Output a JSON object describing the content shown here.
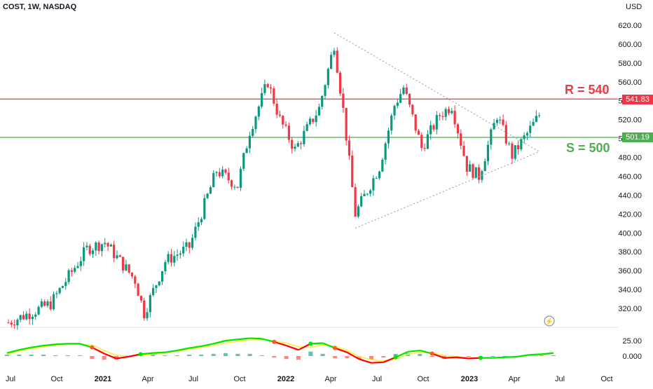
{
  "header": {
    "title": "COST, 1W, NASDAQ",
    "currency": "USD"
  },
  "levels": {
    "resistance": {
      "label": "R = 540",
      "badge": "541.83",
      "color": "#f23645"
    },
    "support": {
      "label": "S = 500",
      "badge": "501.19",
      "color": "#4caf50"
    }
  },
  "chart_data": [
    {
      "type": "candlestick",
      "title": "COST, 1W, NASDAQ",
      "ylabel": "USD",
      "ylim": [
        300,
        625
      ],
      "y_ticks": [
        "620.00",
        "600.00",
        "580.00",
        "560.00",
        "540.00",
        "520.00",
        "500.00",
        "480.00",
        "460.00",
        "440.00",
        "420.00",
        "400.00",
        "380.00",
        "360.00",
        "340.00",
        "320.00"
      ],
      "x_ticks": [
        "Jul",
        "Oct",
        "2021",
        "Apr",
        "Jul",
        "Oct",
        "2022",
        "Apr",
        "Jul",
        "Oct",
        "2023",
        "Apr",
        "Jul",
        "Oct"
      ],
      "horizontal_lines": [
        541.83,
        501.19
      ],
      "triangle": {
        "upper": [
          {
            "x": "2022-04",
            "y": 612
          },
          {
            "x": "2023-07",
            "y": 486
          }
        ],
        "lower": [
          {
            "x": "2022-05",
            "y": 405
          },
          {
            "x": "2023-07",
            "y": 486
          }
        ]
      },
      "anchors": [
        {
          "t": 0,
          "v": 305
        },
        {
          "t": 14,
          "v": 325
        },
        {
          "t": 26,
          "v": 383
        },
        {
          "t": 32,
          "v": 390
        },
        {
          "t": 42,
          "v": 350
        },
        {
          "t": 45,
          "v": 315
        },
        {
          "t": 52,
          "v": 370
        },
        {
          "t": 60,
          "v": 385
        },
        {
          "t": 69,
          "v": 466
        },
        {
          "t": 76,
          "v": 450
        },
        {
          "t": 80,
          "v": 508
        },
        {
          "t": 86,
          "v": 560
        },
        {
          "t": 90,
          "v": 520
        },
        {
          "t": 95,
          "v": 488
        },
        {
          "t": 103,
          "v": 532
        },
        {
          "t": 108,
          "v": 600
        },
        {
          "t": 111,
          "v": 530
        },
        {
          "t": 115,
          "v": 420
        },
        {
          "t": 123,
          "v": 470
        },
        {
          "t": 128,
          "v": 535
        },
        {
          "t": 131,
          "v": 554
        },
        {
          "t": 137,
          "v": 490
        },
        {
          "t": 143,
          "v": 525
        },
        {
          "t": 147,
          "v": 535
        },
        {
          "t": 152,
          "v": 470
        },
        {
          "t": 156,
          "v": 460
        },
        {
          "t": 162,
          "v": 525
        },
        {
          "t": 167,
          "v": 482
        },
        {
          "t": 172,
          "v": 505
        },
        {
          "t": 176,
          "v": 525
        }
      ],
      "weeks": 176
    },
    {
      "type": "line",
      "title": "",
      "ylim": [
        -12,
        28
      ],
      "y_ticks": [
        "25.00",
        "0.000"
      ],
      "series": [
        {
          "color": "#00e600",
          "values": [
            5,
            10,
            14,
            17,
            19,
            20,
            20,
            14,
            4,
            -4,
            -1,
            3,
            5,
            6,
            9,
            13,
            16,
            20,
            25,
            27,
            29,
            28,
            23,
            17,
            10,
            20,
            21,
            13,
            6,
            -5,
            -11,
            -10,
            -2,
            7,
            9,
            4,
            -3,
            -2,
            -4,
            -3,
            -3,
            -2,
            -1,
            2,
            3,
            5
          ]
        },
        {
          "color": "#ffeb3b",
          "values": [
            3,
            8,
            12,
            15,
            18,
            19,
            19,
            18,
            9,
            1,
            0,
            1,
            3,
            5,
            8,
            11,
            14,
            17,
            21,
            24,
            26,
            27,
            25,
            21,
            15,
            14,
            18,
            16,
            9,
            -1,
            -6,
            -8,
            -5,
            3,
            6,
            5,
            1,
            -1,
            -3,
            -3,
            -3,
            -2,
            -1,
            1,
            2,
            4
          ]
        },
        {
          "color": "#ff0000",
          "values": [
            5,
            10,
            14,
            17,
            19,
            20,
            20,
            14,
            4,
            -4,
            -1,
            3,
            5,
            6,
            9,
            13,
            16,
            20,
            25,
            27,
            29,
            28,
            23,
            17,
            10,
            20,
            21,
            13,
            6,
            -5,
            -11,
            -10,
            -2,
            7,
            9,
            4,
            -3,
            -2,
            -4,
            -3,
            -3,
            -2,
            -1,
            2,
            3,
            5
          ]
        }
      ]
    }
  ]
}
